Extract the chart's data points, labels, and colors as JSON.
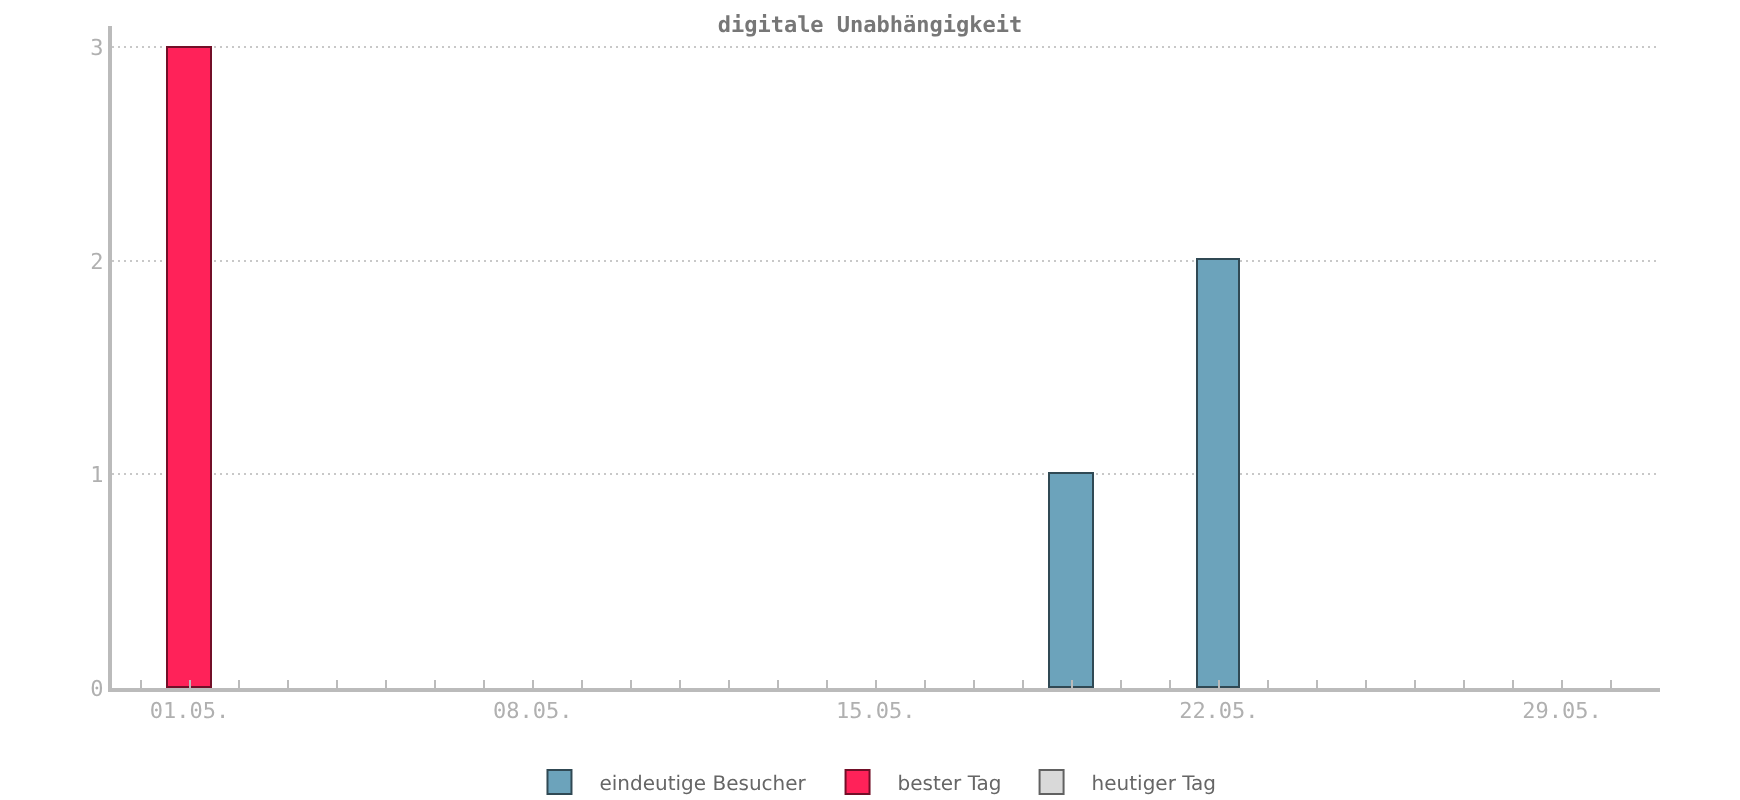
{
  "chart_data": {
    "type": "bar",
    "title": "digitale Unabhängigkeit",
    "series": [
      {
        "name": "eindeutige Besucher",
        "color": "#6ca3bb",
        "x": [
          "--05-19",
          "--05-22"
        ],
        "values": [
          1,
          2
        ]
      },
      {
        "name": "bester Tag",
        "color": "#ff2259",
        "x": [
          "--05-01"
        ],
        "values": [
          3
        ]
      },
      {
        "name": "heutiger Tag",
        "color": "#d9d9d9"
      }
    ],
    "xlim": [
      "--04-29T10:00",
      "--05-31T00:00"
    ],
    "xticks": [
      {
        "value": "--04-30",
        "label": null
      },
      {
        "value": "--05-01",
        "label": "01.05."
      },
      {
        "value": "--05-02",
        "label": null
      },
      {
        "value": "--05-03",
        "label": null
      },
      {
        "value": "--05-04",
        "label": null
      },
      {
        "value": "--05-05",
        "label": null
      },
      {
        "value": "--05-06",
        "label": null
      },
      {
        "value": "--05-07",
        "label": null
      },
      {
        "value": "--05-08",
        "label": "08.05."
      },
      {
        "value": "--05-09",
        "label": null
      },
      {
        "value": "--05-10",
        "label": null
      },
      {
        "value": "--05-11",
        "label": null
      },
      {
        "value": "--05-12",
        "label": null
      },
      {
        "value": "--05-13",
        "label": null
      },
      {
        "value": "--05-14",
        "label": null
      },
      {
        "value": "--05-15",
        "label": "15.05."
      },
      {
        "value": "--05-16",
        "label": null
      },
      {
        "value": "--05-17",
        "label": null
      },
      {
        "value": "--05-18",
        "label": null
      },
      {
        "value": "--05-19",
        "label": null
      },
      {
        "value": "--05-20",
        "label": null
      },
      {
        "value": "--05-21",
        "label": null
      },
      {
        "value": "--05-22",
        "label": "22.05."
      },
      {
        "value": "--05-23",
        "label": null
      },
      {
        "value": "--05-24",
        "label": null
      },
      {
        "value": "--05-25",
        "label": null
      },
      {
        "value": "--05-26",
        "label": null
      },
      {
        "value": "--05-27",
        "label": null
      },
      {
        "value": "--05-28",
        "label": null
      },
      {
        "value": "--05-29",
        "label": "29.05."
      },
      {
        "value": "--05-30",
        "label": null
      }
    ],
    "ylim": [
      0,
      3.1
    ],
    "yticks": [
      0,
      1,
      2,
      3
    ],
    "grid": "y",
    "legend": "bottom"
  }
}
